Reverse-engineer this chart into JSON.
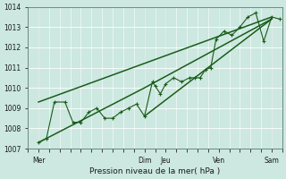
{
  "xlabel": "Pression niveau de la mer( hPa )",
  "bg_color": "#cce8e0",
  "grid_color": "#b0d8d0",
  "line_color": "#1a5c1a",
  "trend_color": "#1a5c1a",
  "ylim": [
    1007,
    1014
  ],
  "yticks": [
    1007,
    1008,
    1009,
    1010,
    1011,
    1012,
    1013,
    1014
  ],
  "xlim": [
    0,
    192
  ],
  "day_labels": [
    "Mer",
    "Dim",
    "Jeu",
    "Ven",
    "Sam"
  ],
  "day_positions": [
    8,
    88,
    104,
    144,
    184
  ],
  "vline_positions": [
    8,
    88,
    104,
    144,
    184
  ],
  "detailed_x": [
    8,
    14,
    20,
    28,
    34,
    40,
    46,
    52,
    58,
    64,
    70,
    76,
    82,
    88,
    94,
    96,
    100,
    104,
    110,
    116,
    122,
    126,
    130,
    134,
    138,
    142,
    148,
    154,
    160,
    166,
    172,
    178,
    184,
    190
  ],
  "detailed_y": [
    1007.3,
    1007.5,
    1009.3,
    1009.3,
    1008.3,
    1008.3,
    1008.8,
    1009.0,
    1008.5,
    1008.5,
    1008.8,
    1009.0,
    1009.2,
    1008.6,
    1010.3,
    1010.1,
    1009.7,
    1010.2,
    1010.5,
    1010.3,
    1010.5,
    1010.5,
    1010.5,
    1010.9,
    1011.0,
    1012.4,
    1012.8,
    1012.6,
    1013.0,
    1013.5,
    1013.7,
    1012.3,
    1013.5,
    1013.4
  ],
  "trend1_x": [
    8,
    88,
    184
  ],
  "trend1_y": [
    1007.3,
    1010.0,
    1013.4
  ],
  "trend2_x": [
    8,
    184
  ],
  "trend2_y": [
    1009.3,
    1013.5
  ],
  "trend3_x": [
    88,
    184
  ],
  "trend3_y": [
    1008.6,
    1013.4
  ]
}
